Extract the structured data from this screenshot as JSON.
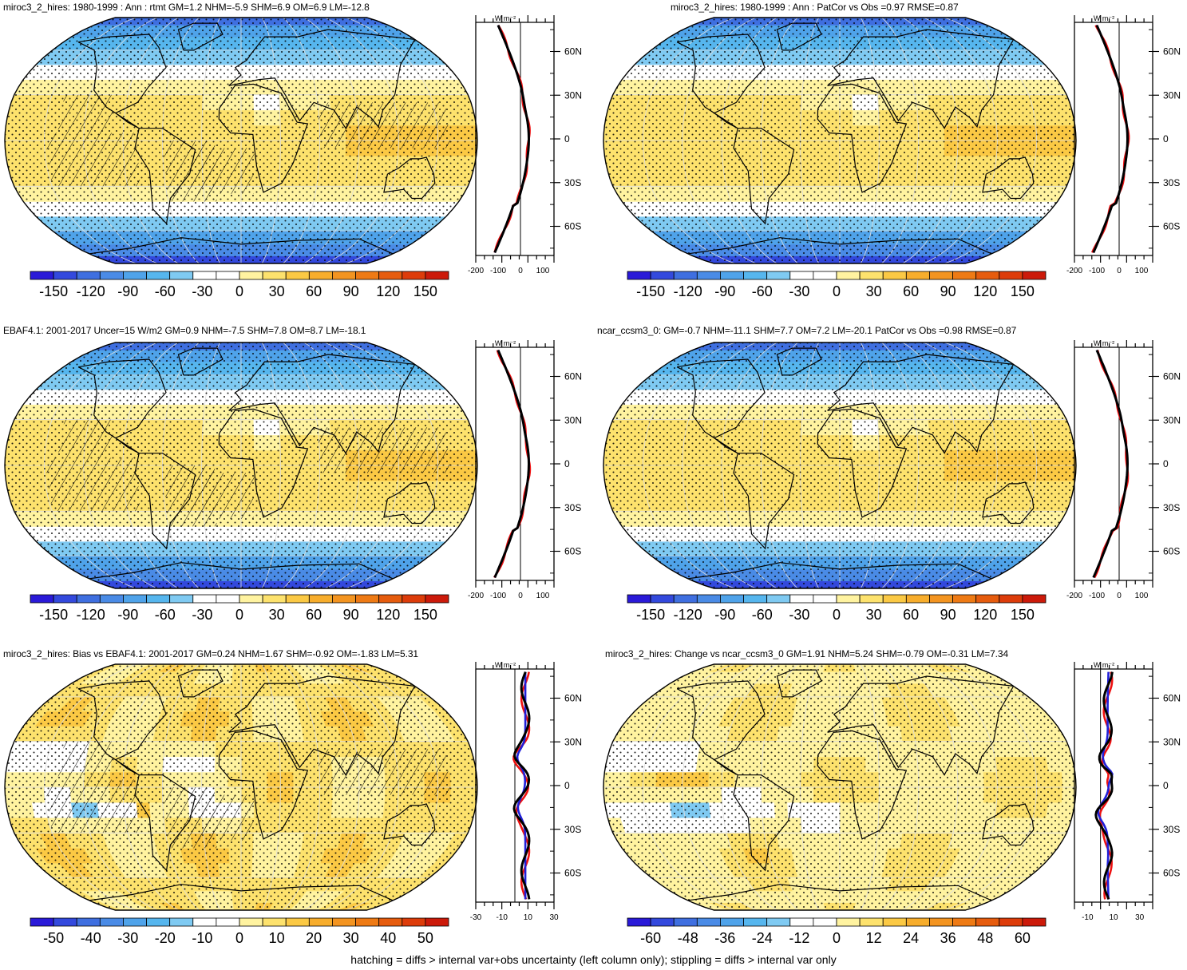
{
  "panels": [
    {
      "title": "miroc3_2_hires: 1980-1999 : Ann : rtmt GM=1.2 NHM=-5.9 SHM=6.9 OM=6.9 LM=-12.8",
      "field": "mean",
      "hatch": true,
      "stipple": true,
      "colorbar": {
        "ticks": [
          "-150",
          "-120",
          "-90",
          "-60",
          "-30",
          "0",
          "30",
          "60",
          "90",
          "120",
          "150"
        ]
      },
      "zonal": {
        "units": "W m⁻²",
        "x_ticks": [
          "-200",
          "-100",
          "0",
          "100"
        ],
        "xlim": [
          -200,
          150
        ],
        "lat_ticks": [
          "60N",
          "30N",
          "0",
          "30S",
          "60S"
        ],
        "lines": [
          "red",
          "blue",
          "black"
        ]
      }
    },
    {
      "title": "miroc3_2_hires: 1980-1999 : Ann : PatCor vs Obs =0.97 RMSE=0.87",
      "field": "mean",
      "hatch": false,
      "stipple": true,
      "colorbar": {
        "ticks": [
          "-150",
          "-120",
          "-90",
          "-60",
          "-30",
          "0",
          "30",
          "60",
          "90",
          "120",
          "150"
        ]
      },
      "zonal": {
        "units": "W m⁻²",
        "x_ticks": [
          "-200",
          "-100",
          "0",
          "100"
        ],
        "xlim": [
          -200,
          150
        ],
        "lat_ticks": [
          "60N",
          "30N",
          "0",
          "30S",
          "60S"
        ],
        "lines": [
          "red",
          "blue",
          "black"
        ]
      }
    },
    {
      "title": "EBAF4.1: 2001-2017 Uncer=15 W/m2 GM=0.9 NHM=-7.5 SHM=7.8 OM=8.7 LM=-18.1",
      "field": "mean",
      "hatch": true,
      "stipple": true,
      "colorbar": {
        "ticks": [
          "-150",
          "-120",
          "-90",
          "-60",
          "-30",
          "0",
          "30",
          "60",
          "90",
          "120",
          "150"
        ]
      },
      "zonal": {
        "units": "W m⁻²",
        "x_ticks": [
          "-200",
          "-100",
          "0",
          "100"
        ],
        "xlim": [
          -200,
          150
        ],
        "lat_ticks": [
          "60N",
          "30N",
          "0",
          "30S",
          "60S"
        ],
        "lines": [
          "red",
          "blue",
          "black"
        ]
      }
    },
    {
      "title": "ncar_ccsm3_0: GM=-0.7 NHM=-11.1 SHM=7.7 OM=7.2 LM=-20.1 PatCor vs Obs =0.98 RMSE=0.87",
      "field": "mean",
      "hatch": false,
      "stipple": true,
      "colorbar": {
        "ticks": [
          "-150",
          "-120",
          "-90",
          "-60",
          "-30",
          "0",
          "30",
          "60",
          "90",
          "120",
          "150"
        ]
      },
      "zonal": {
        "units": "W m⁻²",
        "x_ticks": [
          "-200",
          "-100",
          "0",
          "100"
        ],
        "xlim": [
          -200,
          150
        ],
        "lat_ticks": [
          "60N",
          "30N",
          "0",
          "30S",
          "60S"
        ],
        "lines": [
          "red",
          "blue",
          "black"
        ]
      }
    },
    {
      "title": "miroc3_2_hires: Bias vs EBAF4.1: 2001-2017 GM=0.24 NHM=1.67 SHM=-0.92 OM=-1.83 LM=5.31",
      "field": "bias",
      "hatch": true,
      "stipple": true,
      "colorbar": {
        "ticks": [
          "-50",
          "-40",
          "-30",
          "-20",
          "-10",
          "0",
          "10",
          "20",
          "30",
          "40",
          "50"
        ]
      },
      "zonal": {
        "units": "W m⁻²",
        "x_ticks": [
          "-30",
          "-10",
          "10",
          "30"
        ],
        "xlim": [
          -30,
          30
        ],
        "lat_ticks": [
          "60N",
          "30N",
          "0",
          "30S",
          "60S"
        ],
        "lines": [
          "red",
          "blue",
          "black"
        ]
      }
    },
    {
      "title": "miroc3_2_hires: Change vs ncar_ccsm3_0 GM=1.91 NHM=5.24 SHM=-0.79 OM=-0.31 LM=7.34",
      "field": "change",
      "hatch": false,
      "stipple": true,
      "colorbar": {
        "ticks": [
          "-60",
          "-48",
          "-36",
          "-24",
          "-12",
          "0",
          "12",
          "24",
          "36",
          "48",
          "60"
        ]
      },
      "zonal": {
        "units": "W m⁻²",
        "x_ticks": [
          "-10",
          "10",
          "30"
        ],
        "xlim": [
          -20,
          40
        ],
        "lat_ticks": [
          "60N",
          "30N",
          "0",
          "30S",
          "60S"
        ],
        "lines": [
          "red",
          "blue",
          "black"
        ]
      }
    }
  ],
  "palette": [
    "#2a1ad8",
    "#3349dd",
    "#3f6fe0",
    "#4a8be6",
    "#4fa3ea",
    "#56b6ee",
    "#7fcaf2",
    "#ffffff",
    "#ffffff",
    "#fff3a0",
    "#fde26d",
    "#fbc944",
    "#f7ad2c",
    "#f39420",
    "#ee7a14",
    "#e65c0e",
    "#dd3c0a",
    "#cc1a0a"
  ],
  "footer": "hatching = diffs > internal var+obs uncertainty (left column only); stippling = diffs > internal var only"
}
